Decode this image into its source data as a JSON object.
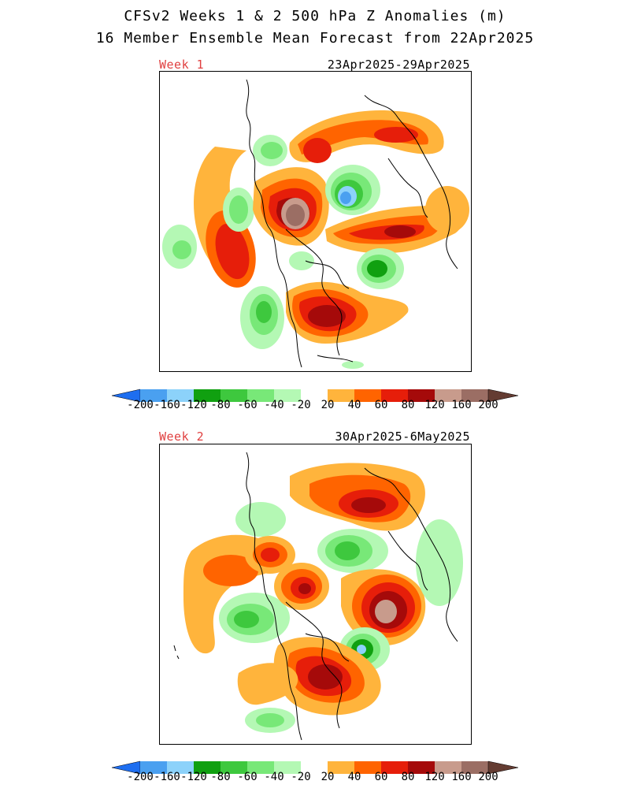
{
  "title": {
    "line1": "CFSv2 Weeks 1 & 2 500 hPa Z Anomalies (m)",
    "line2": "16 Member Ensemble Mean Forecast from 22Apr2025"
  },
  "panels": [
    {
      "week_label": "Week 1",
      "date_range": "23Apr2025-29Apr2025"
    },
    {
      "week_label": "Week 2",
      "date_range": "30Apr2025-6May2025"
    }
  ],
  "colorbar": {
    "levels": [
      "-200",
      "-160",
      "-120",
      "-80",
      "-60",
      "-40",
      "-20",
      "20",
      "40",
      "60",
      "80",
      "120",
      "160",
      "200"
    ],
    "colors": [
      "#1e6ef0",
      "#4aa0f0",
      "#8cd2fa",
      "#10a010",
      "#3ec83e",
      "#78e878",
      "#b4f8b4",
      "#ffffff",
      "#ffb43c",
      "#ff6400",
      "#e61e0a",
      "#a50a0a",
      "#c89b8c",
      "#9b6e64",
      "#643c32"
    ]
  }
}
